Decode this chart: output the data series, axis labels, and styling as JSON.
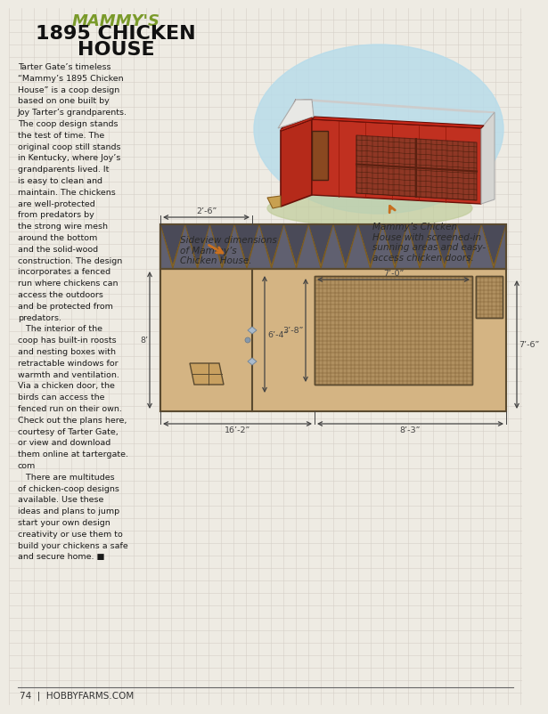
{
  "bg_color": "#eeebe3",
  "grid_color": "#d5d0c8",
  "title_line1": "MAMMY'S",
  "title_line2": "1895 CHICKEN",
  "title_line3": "HOUSE",
  "title_color1": "#7a9a2a",
  "title_color2": "#111111",
  "footer_text": "74  |  HOBBYFARMS.COM",
  "label_sideview": "Sideview dimensions\nof Mammy’s\nChicken House.",
  "label_mammy": "Mammy’s Chicken\nHouse with screened-in\nsunning areas and easy-\naccess chicken doors.",
  "dim_2_6": "2’-6”",
  "dim_6_4": "6’-4”",
  "dim_7_0": "7’-0”",
  "dim_3_8": "3’-8”",
  "dim_16_2": "16’-2”",
  "dim_8_3": "8’-3”",
  "dim_8ft": "8’",
  "dim_7_6": "7’-6”",
  "wall_color": "#d4b483",
  "wall_stroke": "#5a4a30",
  "roof_dark": "#5a5a6a",
  "roof_dark2": "#7a7a8a",
  "roof_tan": "#c8a860",
  "dim_line_color": "#444444",
  "body_lines": [
    "Tarter Gate’s timeless",
    "“Mammy’s 1895 Chicken",
    "House” is a coop design",
    "based on one built by",
    "Joy Tarter’s grandparents.",
    "The coop design stands",
    "the test of time. The",
    "original coop still stands",
    "in Kentucky, where Joy’s",
    "grandparents lived. It",
    "is easy to clean and",
    "maintain. The chickens",
    "are well-protected",
    "from predators by",
    "the strong wire mesh",
    "around the bottom",
    "and the solid-wood",
    "construction. The design",
    "incorporates a fenced",
    "run where chickens can",
    "access the outdoors",
    "and be protected from",
    "predators.",
    "   The interior of the",
    "coop has built-in roosts",
    "and nesting boxes with",
    "retractable windows for",
    "warmth and ventilation.",
    "Via a chicken door, the",
    "birds can access the",
    "fenced run on their own.",
    "Check out the plans here,",
    "courtesy of Tarter Gate,",
    "or view and download",
    "them online at tartergate.",
    "com",
    "   There are multitudes",
    "of chicken-coop designs",
    "available. Use these",
    "ideas and plans to jump",
    "start your own design",
    "creativity or use them to",
    "build your chickens a safe",
    "and secure home. ■"
  ]
}
